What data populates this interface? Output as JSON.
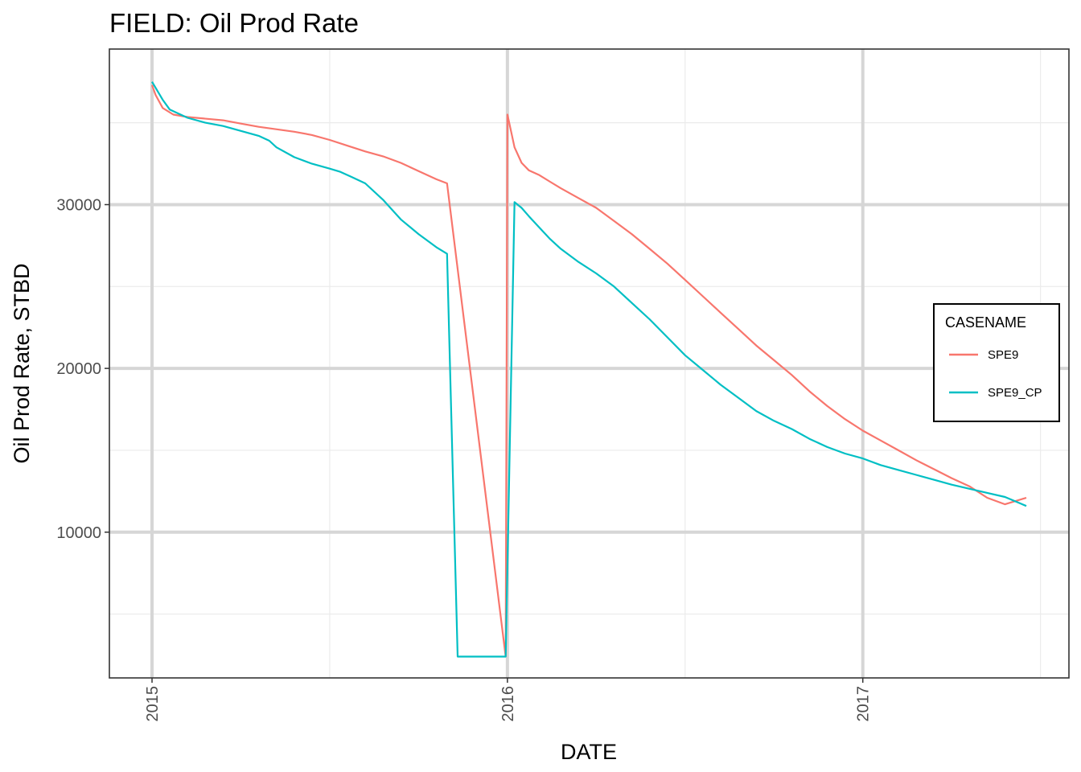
{
  "chart_data": {
    "type": "line",
    "title": "FIELD:  Oil Prod Rate",
    "xlabel": "DATE",
    "ylabel": "Oil Prod Rate, STBD",
    "x_ticks": [
      "2015",
      "2016",
      "2017"
    ],
    "y_ticks": [
      10000,
      20000,
      30000
    ],
    "xlim": [
      2014.88,
      2017.58
    ],
    "ylim": [
      1100,
      39500
    ],
    "grid": true,
    "legend": {
      "title": "CASENAME",
      "position": "right"
    },
    "series": [
      {
        "name": "SPE9",
        "color": "#F8766D",
        "x": [
          2015.0,
          2015.01,
          2015.03,
          2015.06,
          2015.1,
          2015.2,
          2015.25,
          2015.3,
          2015.4,
          2015.45,
          2015.5,
          2015.55,
          2015.6,
          2015.65,
          2015.7,
          2015.75,
          2015.8,
          2015.83,
          2015.995,
          2016.0,
          2016.02,
          2016.04,
          2016.06,
          2016.09,
          2016.12,
          2016.15,
          2016.2,
          2016.25,
          2016.3,
          2016.35,
          2016.4,
          2016.45,
          2016.5,
          2016.55,
          2016.6,
          2016.65,
          2016.7,
          2016.75,
          2016.8,
          2016.85,
          2016.9,
          2016.95,
          2017.0,
          2017.05,
          2017.1,
          2017.15,
          2017.2,
          2017.25,
          2017.3,
          2017.35,
          2017.4,
          2017.46
        ],
        "values": [
          37300,
          36700,
          35900,
          35500,
          35350,
          35150,
          34950,
          34750,
          34450,
          34250,
          33950,
          33600,
          33250,
          32950,
          32550,
          32050,
          31550,
          31300,
          2400,
          35500,
          33500,
          32550,
          32100,
          31800,
          31400,
          31000,
          30400,
          29800,
          29000,
          28200,
          27300,
          26400,
          25400,
          24400,
          23400,
          22400,
          21400,
          20500,
          19600,
          18600,
          17700,
          16900,
          16200,
          15600,
          15000,
          14400,
          13850,
          13300,
          12800,
          12100,
          11700,
          12100
        ]
      },
      {
        "name": "SPE9_CP",
        "color": "#00BFC4",
        "x": [
          2015.0,
          2015.03,
          2015.05,
          2015.1,
          2015.15,
          2015.2,
          2015.25,
          2015.3,
          2015.33,
          2015.35,
          2015.4,
          2015.45,
          2015.5,
          2015.53,
          2015.56,
          2015.6,
          2015.65,
          2015.7,
          2015.75,
          2015.8,
          2015.83,
          2015.86,
          2015.99,
          2015.995,
          2016.02,
          2016.04,
          2016.06,
          2016.09,
          2016.12,
          2016.15,
          2016.2,
          2016.25,
          2016.3,
          2016.35,
          2016.4,
          2016.45,
          2016.5,
          2016.55,
          2016.6,
          2016.65,
          2016.7,
          2016.75,
          2016.8,
          2016.85,
          2016.9,
          2016.95,
          2017.0,
          2017.05,
          2017.1,
          2017.15,
          2017.2,
          2017.25,
          2017.3,
          2017.35,
          2017.4,
          2017.46
        ],
        "values": [
          37500,
          36400,
          35800,
          35300,
          35000,
          34800,
          34500,
          34200,
          33900,
          33500,
          32900,
          32500,
          32200,
          32000,
          31700,
          31300,
          30300,
          29100,
          28200,
          27400,
          27000,
          2400,
          2400,
          2400,
          30150,
          29800,
          29300,
          28600,
          27900,
          27300,
          26500,
          25800,
          25000,
          24000,
          23000,
          21900,
          20800,
          19900,
          19000,
          18200,
          17400,
          16800,
          16300,
          15700,
          15200,
          14800,
          14500,
          14100,
          13800,
          13500,
          13200,
          12900,
          12650,
          12400,
          12150,
          11600
        ]
      }
    ]
  }
}
